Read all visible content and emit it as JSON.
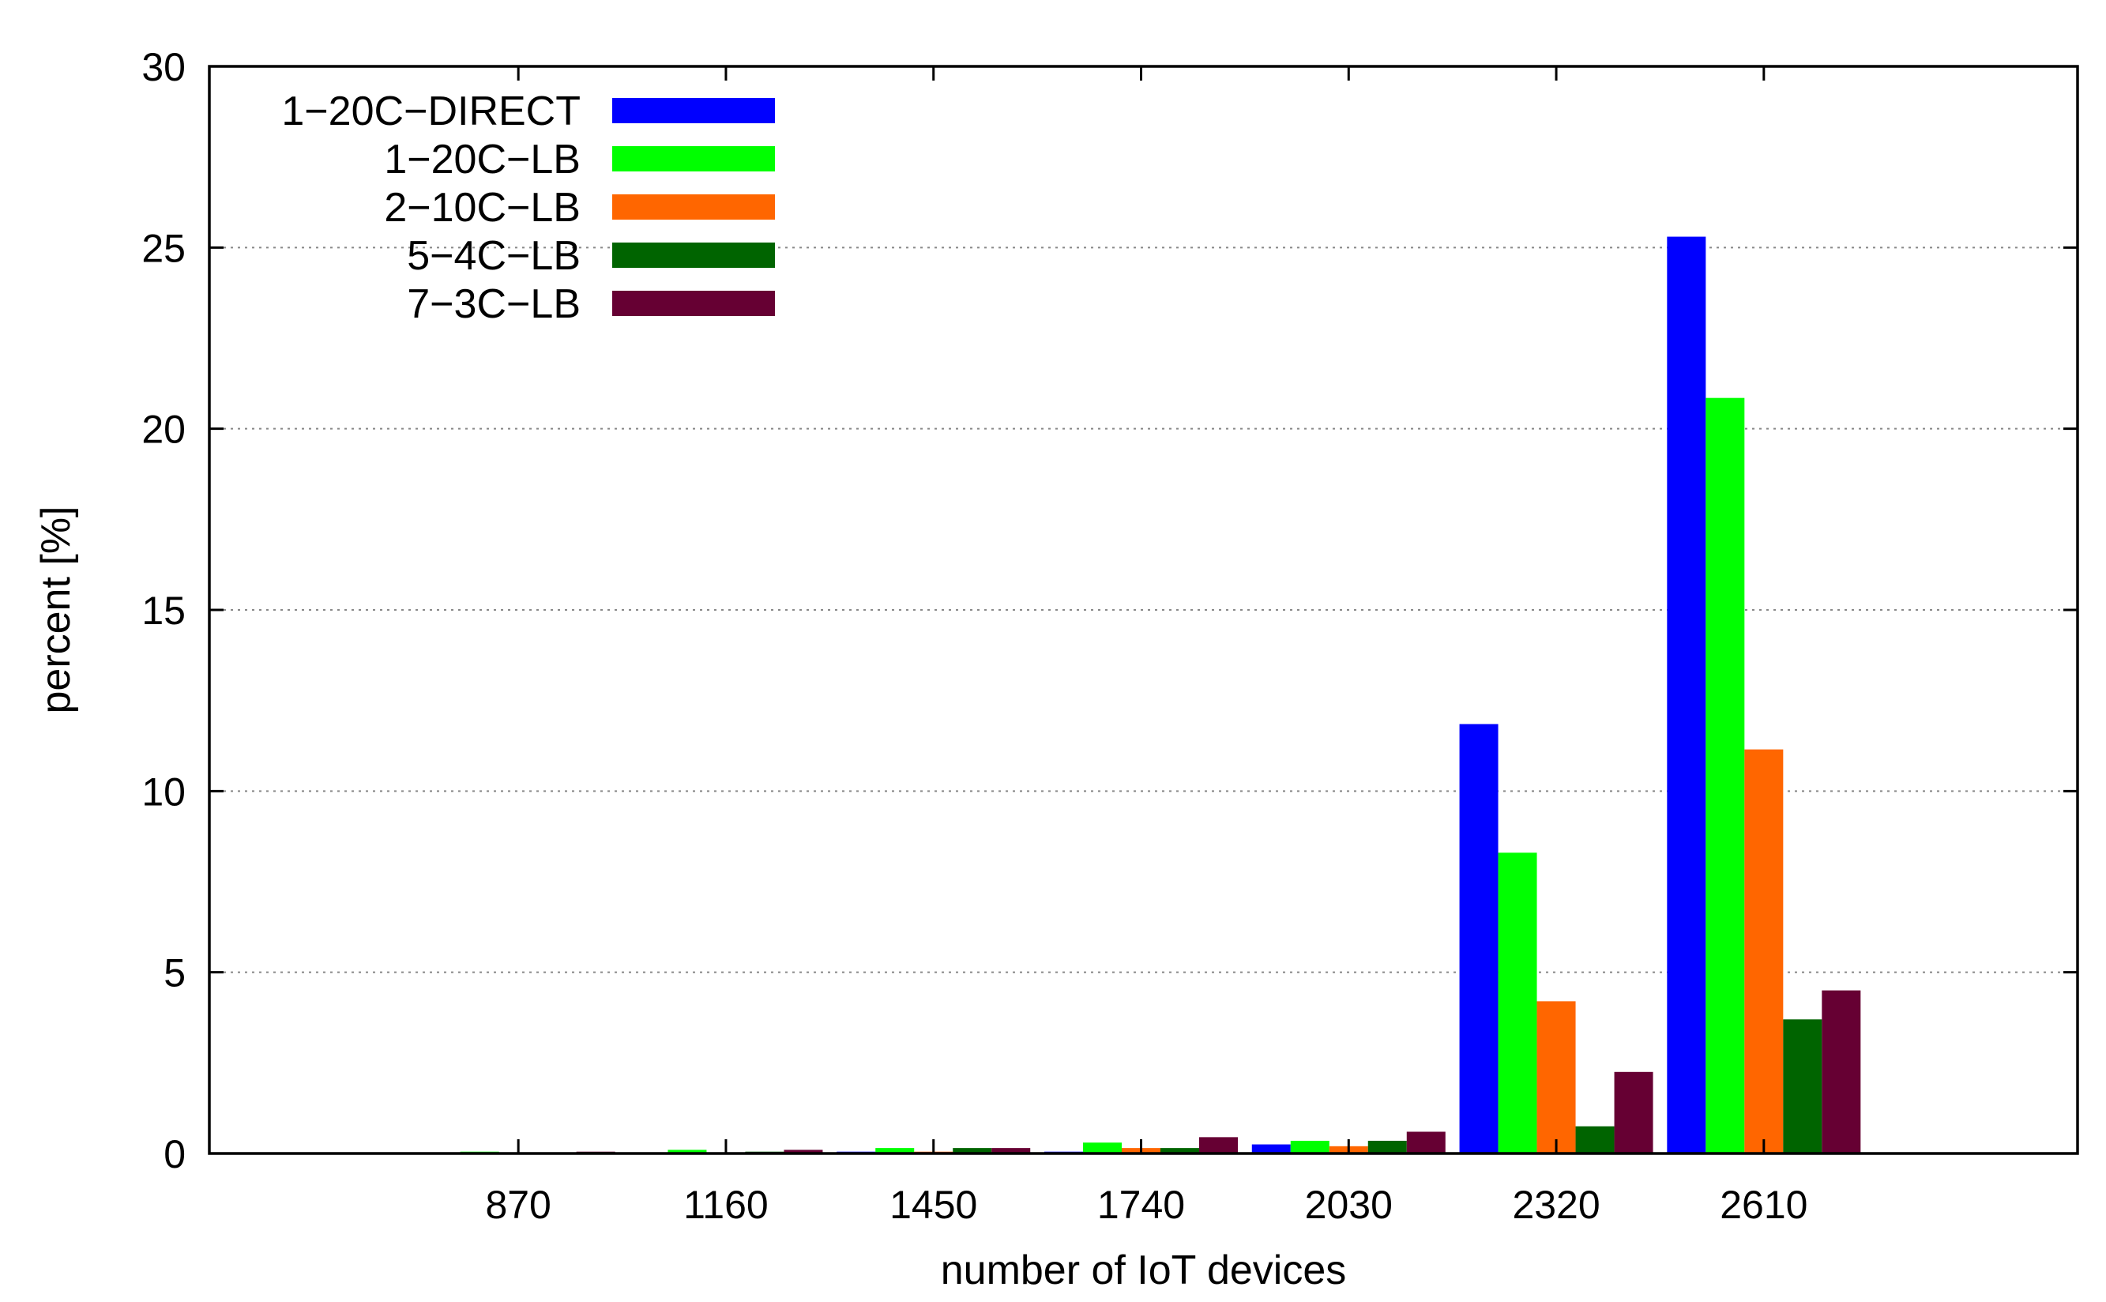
{
  "chart_data": {
    "type": "bar",
    "title": "",
    "xlabel": "number of IoT devices",
    "ylabel": "percent [%]",
    "ylim": [
      0,
      30
    ],
    "yticks": [
      0,
      5,
      10,
      15,
      20,
      25,
      30
    ],
    "grid": "horizontal dotted",
    "legend_position": "top-left",
    "categories": [
      "870",
      "1160",
      "1450",
      "1740",
      "2030",
      "2320",
      "2610"
    ],
    "series": [
      {
        "name": "1−20C−DIRECT",
        "color": "#0000ff",
        "values": [
          0.0,
          0.0,
          0.05,
          0.05,
          0.25,
          11.85,
          25.3
        ]
      },
      {
        "name": "1−20C−LB",
        "color": "#00ff00",
        "values": [
          0.05,
          0.1,
          0.15,
          0.3,
          0.35,
          8.3,
          20.85
        ]
      },
      {
        "name": "2−10C−LB",
        "color": "#ff6600",
        "values": [
          0.0,
          0.0,
          0.05,
          0.15,
          0.2,
          4.2,
          11.15
        ]
      },
      {
        "name": "5−4C−LB",
        "color": "#006400",
        "values": [
          0.0,
          0.05,
          0.15,
          0.15,
          0.35,
          0.75,
          3.7
        ]
      },
      {
        "name": "7−3C−LB",
        "color": "#660033",
        "values": [
          0.05,
          0.1,
          0.15,
          0.45,
          0.6,
          2.25,
          4.5
        ]
      }
    ]
  }
}
